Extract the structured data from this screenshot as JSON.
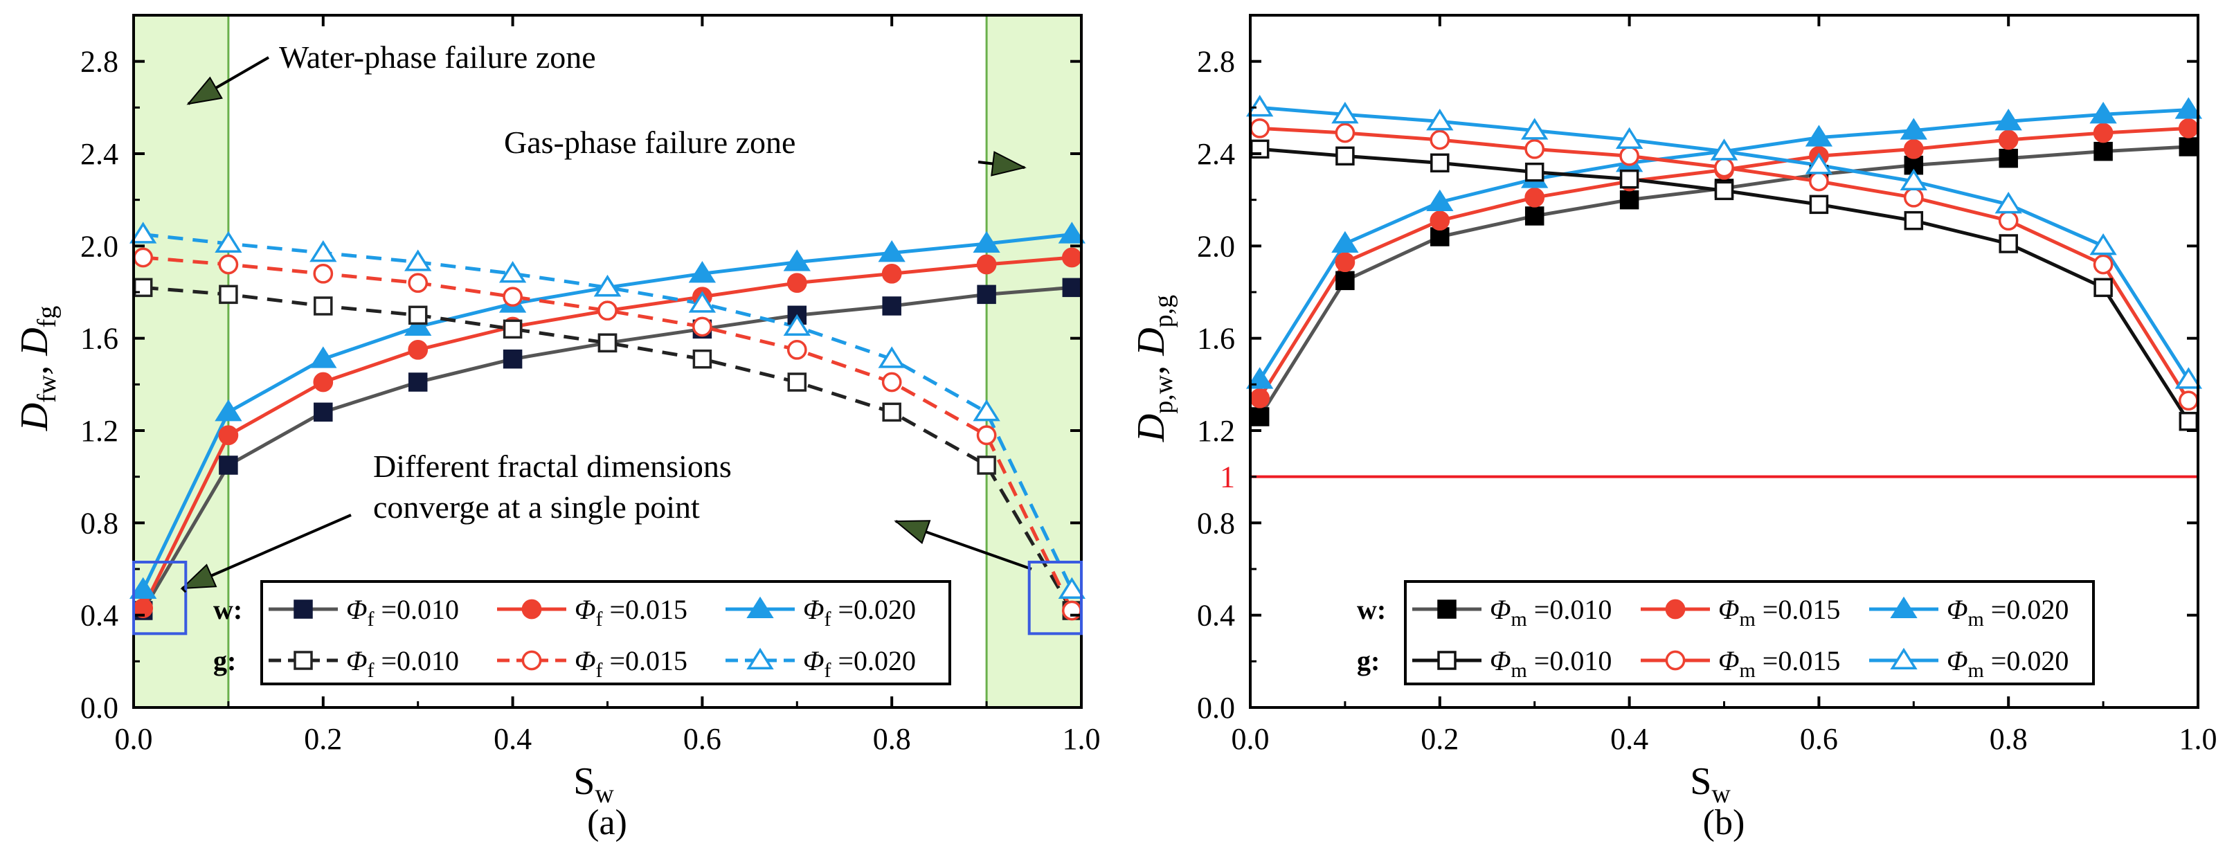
{
  "chart_data": [
    {
      "panel": "(a)",
      "type": "line",
      "xlabel": "S",
      "xlabel_sub": "w",
      "ylabel_parts": [
        {
          "t": "D",
          "sub": "fw"
        },
        {
          "t": ", D",
          "sub": "fg"
        }
      ],
      "xlim": [
        0,
        1.0
      ],
      "ylim": [
        0,
        3.0
      ],
      "xticks": [
        0.0,
        0.2,
        0.4,
        0.6,
        0.8,
        1.0
      ],
      "xtick_labels": [
        "0.0",
        "0.2",
        "0.4",
        "0.6",
        "0.8",
        "1.0"
      ],
      "yticks": [
        0.0,
        0.4,
        0.8,
        1.2,
        1.6,
        2.0,
        2.4,
        2.8
      ],
      "ytick_labels": [
        "0.0",
        "0.4",
        "0.8",
        "1.2",
        "1.6",
        "2.0",
        "2.4",
        "2.8"
      ],
      "shaded_x_ranges": [
        [
          0.0,
          0.1
        ],
        [
          0.9,
          1.0
        ]
      ],
      "annotations": [
        {
          "text": "Water-phase failure zone"
        },
        {
          "text": "Gas-phase failure zone"
        },
        {
          "text": "Different fractal dimensions"
        },
        {
          "text": "converge at a single point"
        }
      ],
      "x": [
        0.01,
        0.1,
        0.2,
        0.3,
        0.4,
        0.5,
        0.6,
        0.7,
        0.8,
        0.9,
        0.99
      ],
      "series": [
        {
          "group": "w",
          "name": "Φf =0.010",
          "color": "#555555",
          "marker_color": "#10183a",
          "marker": "square",
          "filled": true,
          "dashed": false,
          "values": [
            0.42,
            1.05,
            1.28,
            1.41,
            1.51,
            1.58,
            1.64,
            1.7,
            1.74,
            1.79,
            1.82
          ]
        },
        {
          "group": "w",
          "name": "Φf =0.015",
          "color": "#ee4030",
          "marker_color": "#ee4030",
          "marker": "circle",
          "filled": true,
          "dashed": false,
          "values": [
            0.43,
            1.18,
            1.41,
            1.55,
            1.65,
            1.72,
            1.78,
            1.84,
            1.88,
            1.92,
            1.95
          ]
        },
        {
          "group": "w",
          "name": "Φf =0.020",
          "color": "#1e9be6",
          "marker_color": "#1e9be6",
          "marker": "triangle",
          "filled": true,
          "dashed": false,
          "values": [
            0.51,
            1.28,
            1.51,
            1.65,
            1.75,
            1.82,
            1.88,
            1.93,
            1.97,
            2.01,
            2.05
          ]
        },
        {
          "group": "g",
          "name": "Φf =0.010",
          "color": "#222222",
          "marker_color": "#222222",
          "marker": "square",
          "filled": false,
          "dashed": true,
          "values": [
            1.82,
            1.79,
            1.74,
            1.7,
            1.64,
            1.58,
            1.51,
            1.41,
            1.28,
            1.05,
            0.42
          ]
        },
        {
          "group": "g",
          "name": "Φf =0.015",
          "color": "#ee4030",
          "marker_color": "#ee4030",
          "marker": "circle",
          "filled": false,
          "dashed": true,
          "values": [
            1.95,
            1.92,
            1.88,
            1.84,
            1.78,
            1.72,
            1.65,
            1.55,
            1.41,
            1.18,
            0.42
          ]
        },
        {
          "group": "g",
          "name": "Φf =0.020",
          "color": "#1e9be6",
          "marker_color": "#1e9be6",
          "marker": "triangle",
          "filled": false,
          "dashed": true,
          "values": [
            2.05,
            2.01,
            1.97,
            1.93,
            1.88,
            1.82,
            1.75,
            1.65,
            1.51,
            1.28,
            0.51
          ]
        }
      ],
      "legend": {
        "rows": [
          {
            "head": "w:",
            "items": [
              {
                "sym": "Φ",
                "sub": "f",
                "val": " =0.010"
              },
              {
                "sym": "Φ",
                "sub": "f",
                "val": " =0.015"
              },
              {
                "sym": "Φ",
                "sub": "f",
                "val": " =0.020"
              }
            ]
          },
          {
            "head": "g:",
            "items": [
              {
                "sym": "Φ",
                "sub": "f",
                "val": " =0.010"
              },
              {
                "sym": "Φ",
                "sub": "f",
                "val": " =0.015"
              },
              {
                "sym": "Φ",
                "sub": "f",
                "val": " =0.020"
              }
            ]
          }
        ]
      }
    },
    {
      "panel": "(b)",
      "type": "line",
      "xlabel": "S",
      "xlabel_sub": "w",
      "ylabel_parts": [
        {
          "t": "D",
          "sub": "p,w"
        },
        {
          "t": ", D",
          "sub": "p,g"
        }
      ],
      "xlim": [
        0,
        1.0
      ],
      "ylim": [
        0,
        3.0
      ],
      "xticks": [
        0.0,
        0.2,
        0.4,
        0.6,
        0.8,
        1.0
      ],
      "xtick_labels": [
        "0.0",
        "0.2",
        "0.4",
        "0.6",
        "0.8",
        "1.0"
      ],
      "yticks": [
        0.0,
        0.4,
        0.8,
        1.2,
        1.6,
        2.0,
        2.4,
        2.8
      ],
      "ytick_labels": [
        "0.0",
        "0.4",
        "0.8",
        "1.2",
        "1.6",
        "2.0",
        "2.4",
        "2.8"
      ],
      "reference_line": {
        "y": 1,
        "label": "1",
        "color": "#ee1c24"
      },
      "x": [
        0.01,
        0.1,
        0.2,
        0.3,
        0.4,
        0.5,
        0.6,
        0.7,
        0.8,
        0.9,
        0.99
      ],
      "series": [
        {
          "group": "w",
          "name": "Φm =0.010",
          "color": "#555555",
          "marker_color": "#000000",
          "marker": "square",
          "filled": true,
          "dashed": false,
          "values": [
            1.26,
            1.85,
            2.04,
            2.13,
            2.2,
            2.25,
            2.31,
            2.35,
            2.38,
            2.41,
            2.43
          ]
        },
        {
          "group": "w",
          "name": "Φm =0.015",
          "color": "#ee4030",
          "marker_color": "#ee4030",
          "marker": "circle",
          "filled": true,
          "dashed": false,
          "values": [
            1.34,
            1.93,
            2.11,
            2.21,
            2.28,
            2.33,
            2.39,
            2.42,
            2.46,
            2.49,
            2.51
          ]
        },
        {
          "group": "w",
          "name": "Φm =0.020",
          "color": "#1e9be6",
          "marker_color": "#1e9be6",
          "marker": "triangle",
          "filled": true,
          "dashed": false,
          "values": [
            1.42,
            2.01,
            2.19,
            2.29,
            2.36,
            2.41,
            2.47,
            2.5,
            2.54,
            2.57,
            2.59
          ]
        },
        {
          "group": "g",
          "name": "Φm =0.010",
          "color": "#111111",
          "marker_color": "#111111",
          "marker": "square",
          "filled": false,
          "dashed": false,
          "values": [
            2.42,
            2.39,
            2.36,
            2.32,
            2.29,
            2.24,
            2.18,
            2.11,
            2.01,
            1.82,
            1.24
          ]
        },
        {
          "group": "g",
          "name": "Φm =0.015",
          "color": "#ee4030",
          "marker_color": "#ee4030",
          "marker": "circle",
          "filled": false,
          "dashed": false,
          "values": [
            2.51,
            2.49,
            2.46,
            2.42,
            2.39,
            2.34,
            2.28,
            2.21,
            2.11,
            1.92,
            1.33
          ]
        },
        {
          "group": "g",
          "name": "Φm =0.020",
          "color": "#1e9be6",
          "marker_color": "#1e9be6",
          "marker": "triangle",
          "filled": false,
          "dashed": false,
          "values": [
            2.6,
            2.57,
            2.54,
            2.5,
            2.46,
            2.41,
            2.35,
            2.28,
            2.18,
            2.0,
            1.42
          ]
        }
      ],
      "legend": {
        "rows": [
          {
            "head": "w:",
            "items": [
              {
                "sym": "Φ",
                "sub": "m",
                "val": " =0.010"
              },
              {
                "sym": "Φ",
                "sub": "m",
                "val": " =0.015"
              },
              {
                "sym": "Φ",
                "sub": "m",
                "val": " =0.020"
              }
            ]
          },
          {
            "head": "g:",
            "items": [
              {
                "sym": "Φ",
                "sub": "m",
                "val": " =0.010"
              },
              {
                "sym": "Φ",
                "sub": "m",
                "val": " =0.015"
              },
              {
                "sym": "Φ",
                "sub": "m",
                "val": " =0.020"
              }
            ]
          }
        ]
      }
    }
  ]
}
